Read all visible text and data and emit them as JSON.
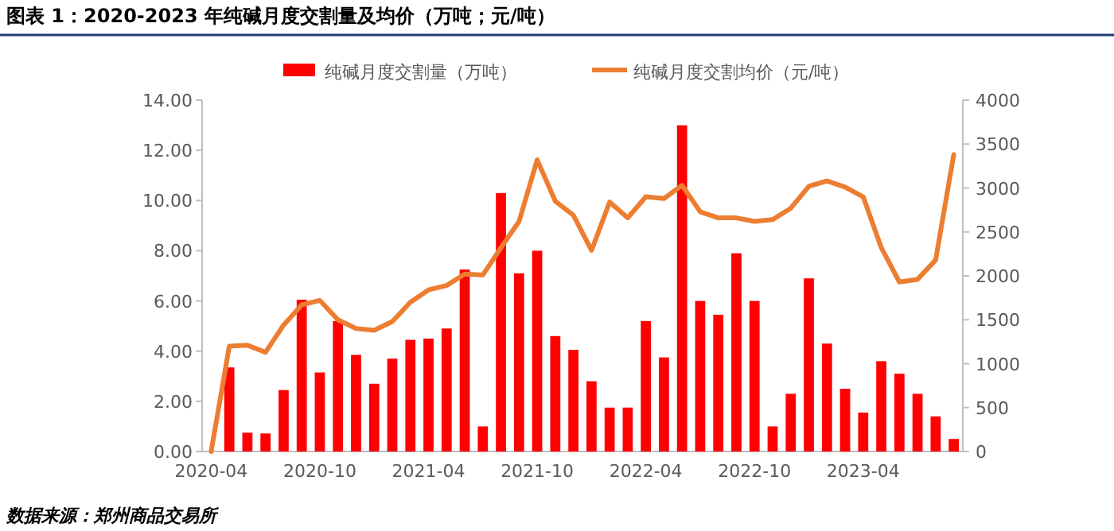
{
  "chart_data": {
    "type": "bar",
    "title": "图表 1：2020-2023 年纯碱月度交割量及均价（万吨；元/吨）",
    "categories": [
      "2020-04",
      null,
      null,
      null,
      null,
      null,
      "2020-10",
      null,
      null,
      null,
      null,
      null,
      "2021-04",
      null,
      null,
      null,
      null,
      null,
      "2021-10",
      null,
      null,
      null,
      null,
      null,
      "2022-04",
      null,
      null,
      null,
      null,
      null,
      "2022-10",
      null,
      null,
      null,
      null,
      null,
      "2023-04",
      null,
      null,
      null,
      null,
      null
    ],
    "series": [
      {
        "name": "纯碱月度交割量（万吨）",
        "color": "#ff0000",
        "values": [
          0,
          3.35,
          0.75,
          0.72,
          2.45,
          6.05,
          3.15,
          5.2,
          3.85,
          2.7,
          3.7,
          4.45,
          4.5,
          4.9,
          7.25,
          1.0,
          10.3,
          7.1,
          8.0,
          4.6,
          4.05,
          2.8,
          1.75,
          1.75,
          5.2,
          3.75,
          13.0,
          6.0,
          5.45,
          7.9,
          6.0,
          1.0,
          2.3,
          6.9,
          4.3,
          2.5,
          1.55,
          3.6,
          3.1,
          2.3,
          1.4,
          0.5
        ]
      },
      {
        "name": "纯碱月度交割均价（元/吨）",
        "type": "line",
        "axis": "y2",
        "color": "#ed7d31",
        "values": [
          0,
          1200,
          1210,
          1130,
          1440,
          1670,
          1720,
          1500,
          1400,
          1380,
          1480,
          1700,
          1840,
          1890,
          2020,
          2010,
          2320,
          2620,
          3320,
          2850,
          2690,
          2290,
          2840,
          2660,
          2900,
          2880,
          3030,
          2730,
          2660,
          2660,
          2620,
          2640,
          2770,
          3020,
          3080,
          3010,
          2900,
          2320,
          1930,
          1960,
          2180,
          3380
        ]
      }
    ],
    "ylim": [
      0,
      14
    ],
    "yticks": [
      {
        "value": 0,
        "label": "0.00"
      },
      {
        "value": 2,
        "label": "2.00"
      },
      {
        "value": 4,
        "label": "4.00"
      },
      {
        "value": 6,
        "label": "6.00"
      },
      {
        "value": 8,
        "label": "8.00"
      },
      {
        "value": 10,
        "label": "10.00"
      },
      {
        "value": 12,
        "label": "12.00"
      },
      {
        "value": 14,
        "label": "14.00"
      }
    ],
    "y2lim": [
      0,
      4000
    ],
    "y2ticks": [
      0,
      500,
      1000,
      1500,
      2000,
      2500,
      3000,
      3500,
      4000
    ],
    "legend": "top",
    "annotations": [
      "数据来源：郑州商品交易所"
    ]
  }
}
